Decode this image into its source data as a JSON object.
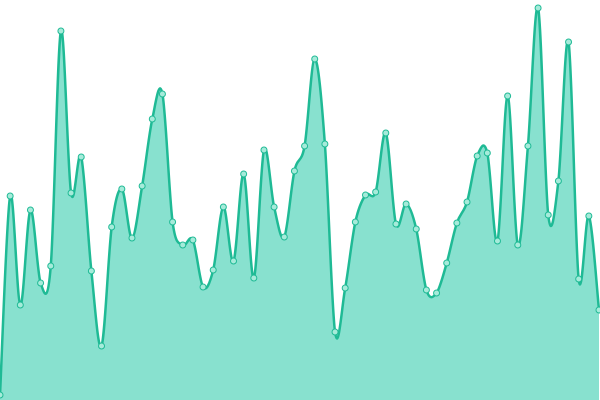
{
  "chart_data": {
    "type": "area",
    "values": [
      5,
      204,
      95,
      190,
      117,
      134,
      369,
      207,
      243,
      129,
      54,
      173,
      211,
      162,
      214,
      281,
      306,
      178,
      155,
      160,
      113,
      130,
      193,
      139,
      226,
      122,
      250,
      193,
      163,
      229,
      254,
      341,
      256,
      68,
      112,
      178,
      205,
      208,
      267,
      176,
      196,
      171,
      110,
      107,
      137,
      177,
      198,
      244,
      247,
      159,
      304,
      155,
      254,
      392,
      185,
      219,
      358,
      121,
      184,
      90
    ],
    "ylim": [
      0,
      400
    ],
    "color": "#1fba95",
    "fill": "#88e1cf",
    "marker_fill": "#a6ebda"
  }
}
